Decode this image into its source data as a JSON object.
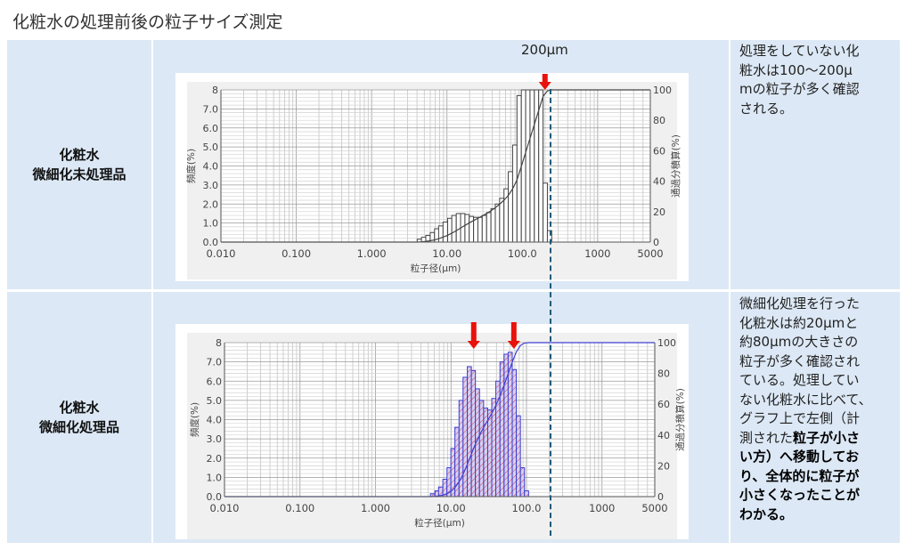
{
  "title": "化粧水の処理前後の粒子サイズ測定",
  "rows": [
    {
      "label_lines": [
        "化粧水",
        "微細化未処理品"
      ],
      "note_lines": [
        [
          {
            "t": "処理をしていない化"
          }
        ],
        [
          {
            "t": "粧水は100〜200μ"
          }
        ],
        [
          {
            "t": "mの粒子が多く確認"
          }
        ],
        [
          {
            "t": "される。"
          }
        ]
      ]
    },
    {
      "label_lines": [
        "化粧水",
        "微細化処理品"
      ],
      "note_lines": [
        [
          {
            "t": "微細化処理を行った"
          }
        ],
        [
          {
            "t": "化粧水は約20μmと"
          }
        ],
        [
          {
            "t": "約80μmの大きさの"
          }
        ],
        [
          {
            "t": "粒子が多く確認され"
          }
        ],
        [
          {
            "t": "ている。処理してい"
          }
        ],
        [
          {
            "t": "ない化粧水に比べて、"
          }
        ],
        [
          {
            "t": "グラフ上で左側（計"
          }
        ],
        [
          {
            "t": "測された"
          },
          {
            "t": "粒子が小さ",
            "b": true
          }
        ],
        [
          {
            "t": "い方）へ移動してお",
            "b": true
          }
        ],
        [
          {
            "t": "り、全体的に粒子が",
            "b": true
          }
        ],
        [
          {
            "t": "小さくなったことが",
            "b": true
          }
        ],
        [
          {
            "t": "わかる。",
            "b": true
          }
        ]
      ]
    }
  ],
  "annotation": {
    "label": "200μm",
    "marker_um": 200,
    "arrow_color": "#e8120c",
    "dash_color": "#1f5a78"
  },
  "chart_data": [
    {
      "type": "bar",
      "xscale": "log",
      "xlabel": "粒子径(μm)",
      "ylabel": "頻度(%)",
      "y2label": "通過分積算(%)",
      "xlim": [
        0.01,
        5000
      ],
      "ylim": [
        0,
        8
      ],
      "y2lim": [
        0,
        100
      ],
      "xticks": [
        "0.010",
        "0.100",
        "1.000",
        "10.00",
        "100.0",
        "1000",
        "5000"
      ],
      "xtick_values": [
        0.01,
        0.1,
        1,
        10,
        100,
        1000,
        5000
      ],
      "yticks": [
        "0.0",
        "1.0",
        "2.0",
        "3.0",
        "4.0",
        "5.0",
        "6.0",
        "7.0",
        "8"
      ],
      "y2ticks": [
        "0",
        "20",
        "40",
        "60",
        "80",
        "100"
      ],
      "grid": true,
      "bar_color": "#444444",
      "bar_fill": "#ffffff",
      "curve_color": "#444444",
      "x": [
        4.3,
        4.9,
        5.6,
        6.4,
        7.3,
        8.3,
        9.5,
        10.9,
        12.4,
        14.2,
        16.2,
        18.5,
        21.1,
        24.1,
        27.5,
        31.4,
        35.9,
        41.0,
        46.8,
        53.4,
        61.0,
        69.6,
        79.5,
        90.8,
        103.7,
        118.4,
        135.2,
        154.4,
        176.3,
        201.3,
        229.9,
        262.5
      ],
      "values": [
        0.15,
        0.25,
        0.35,
        0.5,
        0.7,
        0.85,
        1.05,
        1.25,
        1.4,
        1.5,
        1.5,
        1.45,
        1.35,
        1.3,
        1.3,
        1.4,
        1.55,
        1.75,
        2.0,
        2.3,
        2.8,
        3.7,
        5.1,
        7.7,
        8.0,
        8.0,
        8.0,
        8.0,
        8.0,
        3.1,
        0.6,
        0.0
      ],
      "arrows_um": [
        200
      ]
    },
    {
      "type": "bar",
      "xscale": "log",
      "xlabel": "粒子径(μm)",
      "ylabel": "頻度(%)",
      "y2label": "通過分積算(%)",
      "xlim": [
        0.01,
        5000
      ],
      "ylim": [
        0,
        8
      ],
      "y2lim": [
        0,
        100
      ],
      "xticks": [
        "0.010",
        "0.100",
        "1.000",
        "10.00",
        "100.0",
        "1000",
        "5000"
      ],
      "xtick_values": [
        0.01,
        0.1,
        1,
        10,
        100,
        1000,
        5000
      ],
      "yticks": [
        "0.0",
        "1.0",
        "2.0",
        "3.0",
        "4.0",
        "5.0",
        "6.0",
        "7.0",
        "8"
      ],
      "y2ticks": [
        "0",
        "20",
        "40",
        "60",
        "80",
        "100"
      ],
      "grid": true,
      "bar_color": "#3a3ad0",
      "bar_fill": "#d8d0f0",
      "hatch_color": "#d04040",
      "curve_color": "#4040d0",
      "x": [
        5.7,
        6.5,
        7.3,
        8.3,
        9.4,
        10.6,
        12.0,
        13.6,
        15.4,
        17.5,
        19.8,
        22.4,
        25.4,
        28.8,
        32.6,
        36.9,
        41.8,
        47.4,
        53.7,
        60.8,
        68.9,
        78.0,
        88.4,
        100.1,
        113.4,
        128.5
      ],
      "values": [
        0.15,
        0.3,
        0.5,
        0.9,
        1.5,
        2.5,
        3.6,
        5.0,
        6.2,
        6.75,
        6.55,
        5.6,
        5.0,
        4.6,
        4.5,
        5.1,
        6.0,
        7.0,
        7.4,
        7.5,
        6.6,
        4.2,
        1.5,
        0.3,
        0.0,
        0.0
      ],
      "arrows_um": [
        20,
        68
      ]
    }
  ]
}
